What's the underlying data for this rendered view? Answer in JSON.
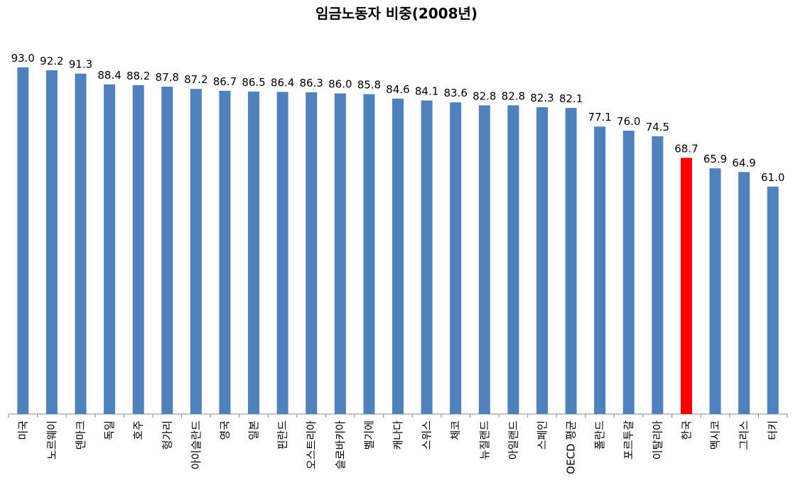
{
  "chart_data": {
    "type": "bar",
    "title": "임금노동자 비중(2008년)",
    "categories": [
      "미국",
      "노르웨이",
      "덴마크",
      "독일",
      "호주",
      "헝가리",
      "아이슬란드",
      "영국",
      "일본",
      "핀란드",
      "오스트리아",
      "슬로바키아",
      "벨기에",
      "캐나다",
      "스위스",
      "체코",
      "뉴질랜드",
      "아일랜드",
      "스페인",
      "OECD 평균",
      "폴란드",
      "포르투갈",
      "이탈리아",
      "한국",
      "멕시코",
      "그리스",
      "터키"
    ],
    "values": [
      93.0,
      92.2,
      91.3,
      88.4,
      88.2,
      87.8,
      87.2,
      86.7,
      86.5,
      86.4,
      86.3,
      86.0,
      85.8,
      84.6,
      84.1,
      83.6,
      82.8,
      82.8,
      82.3,
      82.1,
      77.1,
      76.0,
      74.5,
      68.7,
      65.9,
      64.9,
      61.0
    ],
    "value_labels": [
      "93.0",
      "92.2",
      "91.3",
      "88.4",
      "88.2",
      "87.8",
      "87.2",
      "86.7",
      "86.5",
      "86.4",
      "86.3",
      "86.0",
      "85.8",
      "84.6",
      "84.1",
      "83.6",
      "82.8",
      "82.8",
      "82.3",
      "82.1",
      "77.1",
      "76.0",
      "74.5",
      "68.7",
      "65.9",
      "64.9",
      "61.0"
    ],
    "colors": [
      "#4f81bd",
      "#4f81bd",
      "#4f81bd",
      "#4f81bd",
      "#4f81bd",
      "#4f81bd",
      "#4f81bd",
      "#4f81bd",
      "#4f81bd",
      "#4f81bd",
      "#4f81bd",
      "#4f81bd",
      "#4f81bd",
      "#4f81bd",
      "#4f81bd",
      "#4f81bd",
      "#4f81bd",
      "#4f81bd",
      "#4f81bd",
      "#4f81bd",
      "#4f81bd",
      "#4f81bd",
      "#4f81bd",
      "#ff0000",
      "#4f81bd",
      "#4f81bd",
      "#4f81bd"
    ],
    "ylim": [
      0,
      100
    ]
  }
}
